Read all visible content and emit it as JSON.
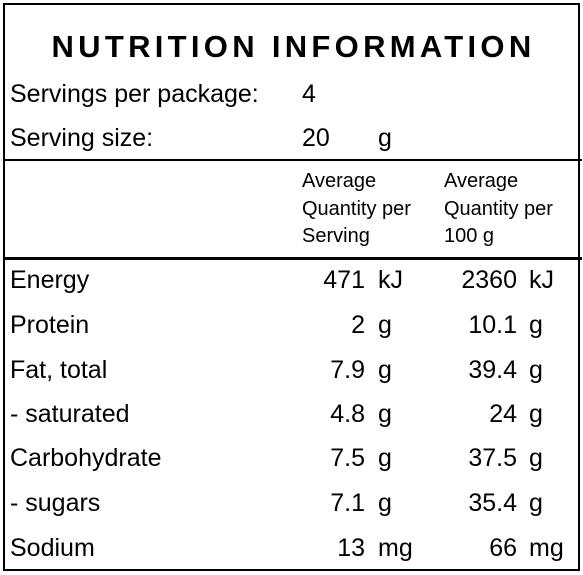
{
  "panel": {
    "title": "NUTRITION INFORMATION",
    "servings_label": "Servings per package:",
    "servings_value": "4",
    "serving_size_label": "Serving size:",
    "serving_size_value": "20",
    "serving_size_unit": "g"
  },
  "columns": {
    "per_serving": [
      "Average",
      "Quantity per",
      "Serving"
    ],
    "per_100g": [
      "Average",
      "Quantity per",
      "100 g"
    ]
  },
  "rows": [
    {
      "name": "Energy",
      "per_serving": "471",
      "per_serving_unit": "kJ",
      "per_100g": "2360",
      "per_100g_unit": "kJ"
    },
    {
      "name": "Protein",
      "per_serving": "2",
      "per_serving_unit": "g",
      "per_100g": "10.1",
      "per_100g_unit": "g"
    },
    {
      "name": "Fat, total",
      "per_serving": "7.9",
      "per_serving_unit": "g",
      "per_100g": "39.4",
      "per_100g_unit": "g"
    },
    {
      "name": "- saturated",
      "per_serving": "4.8",
      "per_serving_unit": "g",
      "per_100g": "24",
      "per_100g_unit": "g"
    },
    {
      "name": "Carbohydrate",
      "per_serving": "7.5",
      "per_serving_unit": "g",
      "per_100g": "37.5",
      "per_100g_unit": "g"
    },
    {
      "name": "- sugars",
      "per_serving": "7.1",
      "per_serving_unit": "g",
      "per_100g": "35.4",
      "per_100g_unit": "g"
    },
    {
      "name": "Sodium",
      "per_serving": "13",
      "per_serving_unit": "mg",
      "per_100g": "66",
      "per_100g_unit": "mg"
    }
  ]
}
